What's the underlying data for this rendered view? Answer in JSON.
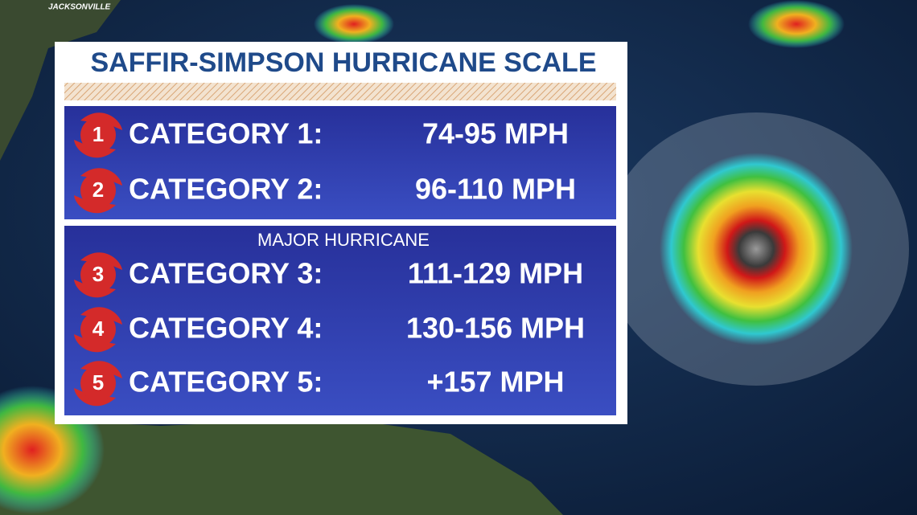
{
  "map_label": "JACKSONVILLE",
  "title": "SAFFIR-SIMPSON HURRICANE SCALE",
  "sections": [
    {
      "rows": [
        {
          "number": "1",
          "label": "CATEGORY 1:",
          "range": "74-95 MPH"
        },
        {
          "number": "2",
          "label": "CATEGORY 2:",
          "range": "96-110 MPH"
        }
      ]
    },
    {
      "heading": "MAJOR HURRICANE",
      "rows": [
        {
          "number": "3",
          "label": "CATEGORY 3:",
          "range": "111-129 MPH"
        },
        {
          "number": "4",
          "label": "CATEGORY 4:",
          "range": "130-156 MPH"
        },
        {
          "number": "5",
          "label": "CATEGORY 5:",
          "range": "+157 MPH"
        }
      ]
    }
  ]
}
